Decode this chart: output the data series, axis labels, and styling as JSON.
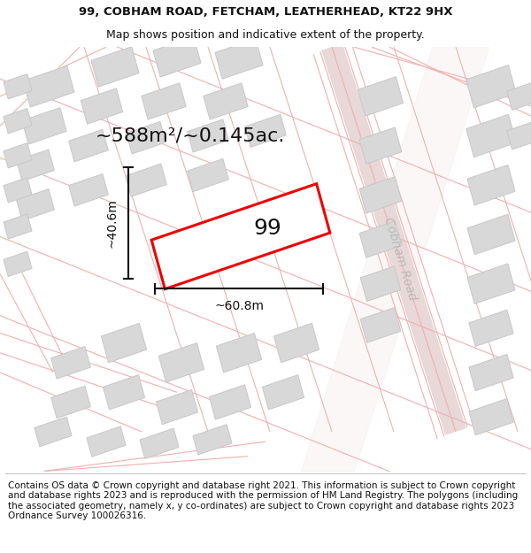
{
  "title_line1": "99, COBHAM ROAD, FETCHAM, LEATHERHEAD, KT22 9HX",
  "title_line2": "Map shows position and indicative extent of the property.",
  "area_text": "~588m²/~0.145ac.",
  "label_number": "99",
  "dim_width": "~60.8m",
  "dim_height": "~40.6m",
  "road_label": "Cobham Road",
  "footer_text": "Contains OS data © Crown copyright and database right 2021. This information is subject to Crown copyright and database rights 2023 and is reproduced with the permission of HM Land Registry. The polygons (including the associated geometry, namely x, y co-ordinates) are subject to Crown copyright and database rights 2023 Ordnance Survey 100026316.",
  "bg_color": "#ffffff",
  "map_bg": "#faf8f8",
  "building_fill": "#d8d8d8",
  "building_edge": "#c8c8c8",
  "plot_outline_color": "#ee0000",
  "plot_fill": "#ffffff",
  "dim_line_color": "#111111",
  "road_line_color": "#f0b0b0",
  "road_line_color2": "#e89898",
  "road_bg_color": "#f8f0f0",
  "cobham_road_color": "#e8e0e0",
  "title_fontsize": 9.5,
  "subtitle_fontsize": 9.0,
  "area_fontsize": 16,
  "label_fontsize": 18,
  "dim_fontsize": 10,
  "road_label_fontsize": 10,
  "footer_fontsize": 7.5
}
